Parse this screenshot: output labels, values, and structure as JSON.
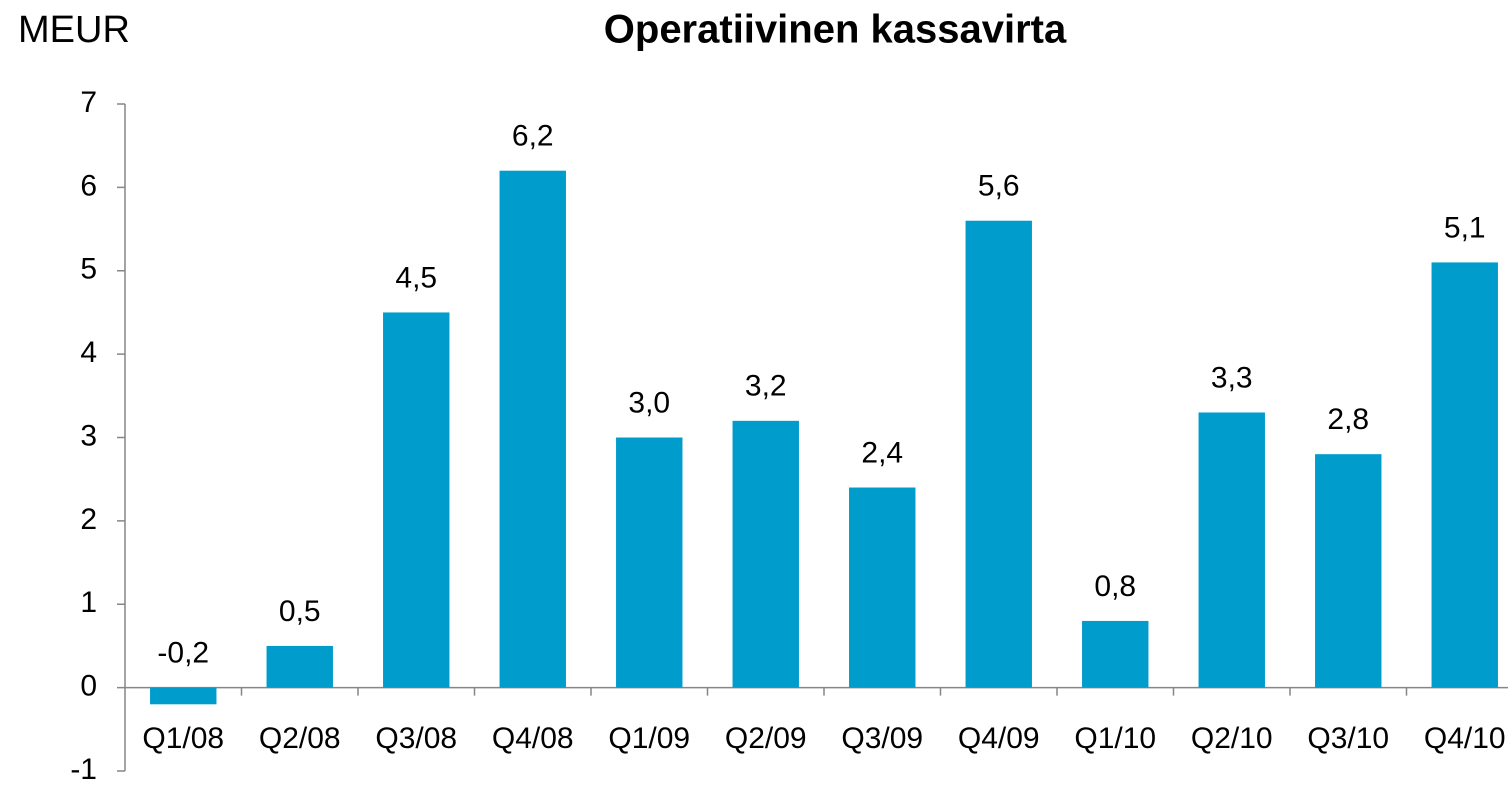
{
  "chart_data": {
    "type": "bar",
    "title": "Operatiivinen kassavirta",
    "y_axis_label": "MEUR",
    "categories": [
      "Q1/08",
      "Q2/08",
      "Q3/08",
      "Q4/08",
      "Q1/09",
      "Q2/09",
      "Q3/09",
      "Q4/09",
      "Q1/10",
      "Q2/10",
      "Q3/10",
      "Q4/10"
    ],
    "values": [
      -0.2,
      0.5,
      4.5,
      6.2,
      3.0,
      3.2,
      2.4,
      5.6,
      0.8,
      3.3,
      2.8,
      5.1
    ],
    "value_labels": [
      "-0,2",
      "0,5",
      "4,5",
      "6,2",
      "3,0",
      "3,2",
      "2,4",
      "5,6",
      "0,8",
      "3,3",
      "2,8",
      "5,1"
    ],
    "color": "#009ccc",
    "ylim": [
      -1,
      7
    ],
    "yticks": [
      -1,
      0,
      1,
      2,
      3,
      4,
      5,
      6,
      7
    ],
    "grid": false
  }
}
